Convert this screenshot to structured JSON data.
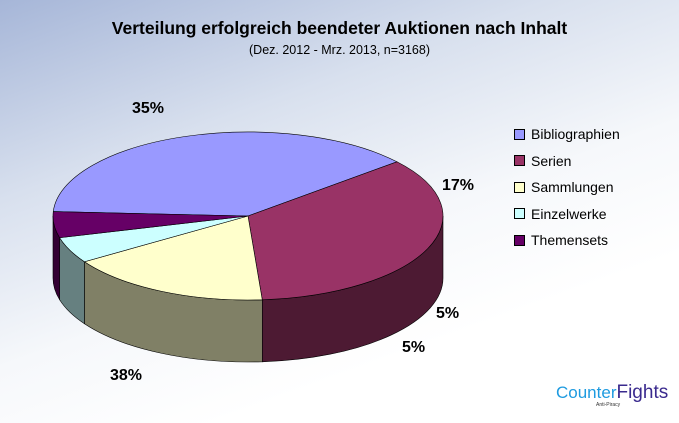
{
  "chart_data": {
    "type": "pie",
    "style": "3d",
    "title": "Verteilung erfolgreich beendeter Auktionen nach Inhalt",
    "subtitle": "(Dez. 2012 - Mrz. 2013, n=3168)",
    "categories": [
      "Bibliographien",
      "Serien",
      "Sammlungen",
      "Einzelwerke",
      "Themensets"
    ],
    "values": [
      38,
      35,
      17,
      5,
      5
    ],
    "data_labels": [
      "38%",
      "35%",
      "17%",
      "5%",
      "5%"
    ],
    "colors": [
      "#9999ff",
      "#993366",
      "#ffffcc",
      "#ccffff",
      "#660066"
    ],
    "legend_placement": "right"
  },
  "logo": {
    "text_a": "Counter",
    "text_b": "Fights",
    "tagline": "Anti-Piracy"
  }
}
